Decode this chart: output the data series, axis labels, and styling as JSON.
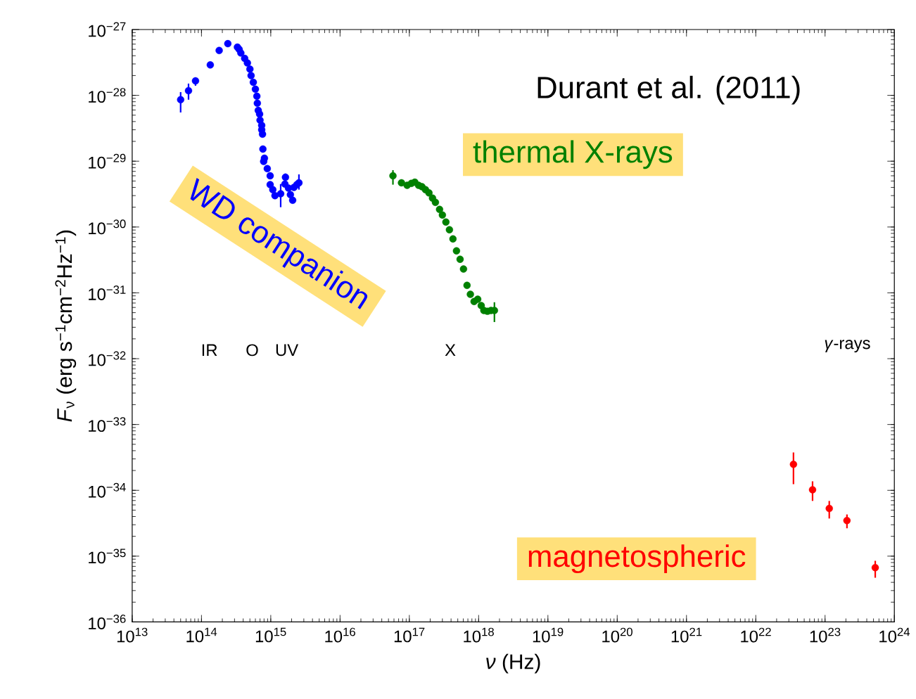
{
  "chart_data": {
    "type": "scatter",
    "log": "xy",
    "xlabel": "*ν* (Hz)",
    "ylabel": "*F*$_{ν}$ (erg s$^{−1}$cm$^{−2}$Hz$^{−1}$)",
    "xlim": [
      10000000000000.0,
      1e+24
    ],
    "ylim": [
      1e-36,
      1e-27
    ],
    "xticks": [
      {
        "value": 10000000000000.0,
        "label": "10$^{13}$"
      },
      {
        "value": 100000000000000.0,
        "label": "10$^{14}$"
      },
      {
        "value": 1000000000000000.0,
        "label": "10$^{15}$"
      },
      {
        "value": 1e+16,
        "label": "10$^{16}$"
      },
      {
        "value": 1e+17,
        "label": "10$^{17}$"
      },
      {
        "value": 1e+18,
        "label": "10$^{18}$"
      },
      {
        "value": 1e+19,
        "label": "10$^{19}$"
      },
      {
        "value": 1e+20,
        "label": "10$^{20}$"
      },
      {
        "value": 1e+21,
        "label": "10$^{21}$"
      },
      {
        "value": 1e+22,
        "label": "10$^{22}$"
      },
      {
        "value": 1e+23,
        "label": "10$^{23}$"
      },
      {
        "value": 1e+24,
        "label": "10$^{24}$"
      }
    ],
    "yticks": [
      {
        "value": 1e-36,
        "label": "10$^{−36}$"
      },
      {
        "value": 1e-35,
        "label": "10$^{−35}$"
      },
      {
        "value": 1e-34,
        "label": "10$^{−34}$"
      },
      {
        "value": 1e-33,
        "label": "10$^{−33}$"
      },
      {
        "value": 1e-32,
        "label": "10$^{−32}$"
      },
      {
        "value": 1e-31,
        "label": "10$^{−31}$"
      },
      {
        "value": 1e-30,
        "label": "10$^{−30}$"
      },
      {
        "value": 1e-29,
        "label": "10$^{−29}$"
      },
      {
        "value": 1e-28,
        "label": "10$^{−28}$"
      },
      {
        "value": 1e-27,
        "label": "10$^{−27}$"
      }
    ],
    "series": [
      {
        "name": "WD companion",
        "color": "#0000ff",
        "x": [
          50000000000000.0,
          65000000000000.0,
          82000000000000.0,
          134000000000000.0,
          180000000000000.0,
          240000000000000.0,
          330000000000000.0,
          350000000000000.0,
          370000000000000.0,
          420000000000000.0,
          460000000000000.0,
          500000000000000.0,
          520000000000000.0,
          560000000000000.0,
          600000000000000.0,
          630000000000000.0,
          640000000000000.0,
          660000000000000.0,
          690000000000000.0,
          700000000000000.0,
          740000000000000.0,
          740000000000000.0,
          760000000000000.0,
          770000000000000.0,
          810000000000000.0,
          790000000000000.0,
          890000000000000.0,
          980000000000000.0,
          980000000000000.0,
          1070000000000000.0,
          1150000000000000.0,
          1390000000000000.0,
          1630000000000000.0,
          1600000000000000.0,
          1800000000000000.0,
          1920000000000000.0,
          2070000000000000.0,
          2160000000000000.0,
          2380000000000000.0,
          2550000000000000.0
        ],
        "values": [
          8.6e-29,
          1.18e-28,
          1.66e-28,
          2.9e-28,
          4.8e-28,
          6.1e-28,
          5.4e-28,
          5e-28,
          4.4e-28,
          3.65e-28,
          3.1e-28,
          2.5e-28,
          2e-28,
          1.58e-28,
          1.24e-28,
          9.7e-29,
          7.6e-29,
          5.9e-29,
          5.2e-29,
          4.2e-29,
          3.5e-29,
          3e-29,
          2.57e-29,
          1.53e-29,
          1.11e-29,
          9.9e-30,
          7.7e-30,
          6e-30,
          4.4e-30,
          3.7e-30,
          3e-30,
          3.2e-30,
          5.7e-30,
          4.5e-30,
          3.9e-30,
          3.1e-30,
          2.55e-30,
          4e-30,
          4.4e-30,
          4.7e-30
        ],
        "errors": [
          [
            5.5e-29,
            1.12e-28
          ],
          [
            8.6e-29,
            1.51e-28
          ],
          [
            1.4e-28,
            1.88e-28
          ],
          null,
          null,
          null,
          null,
          null,
          null,
          null,
          null,
          null,
          null,
          null,
          null,
          null,
          null,
          null,
          null,
          null,
          null,
          null,
          null,
          null,
          null,
          null,
          null,
          null,
          null,
          null,
          null,
          [
            2e-30,
            4.5e-30
          ],
          [
            5.1e-30,
            6.5e-30
          ],
          null,
          null,
          null,
          null,
          null,
          null,
          [
            3.7e-30,
            6.3e-30
          ]
        ]
      },
      {
        "name": "thermal X-rays",
        "color": "#008000",
        "x": [
          5.8e+16,
          7.7e+16,
          9.3e+16,
          1.07e+17,
          1.2e+17,
          1.36e+17,
          1.52e+17,
          1.71e+17,
          1.92e+17,
          2.16e+17,
          2.38e+17,
          2.73e+17,
          3e+17,
          3.37e+17,
          3.79e+17,
          4.26e+17,
          4.79e+17,
          5.4e+17,
          6.05e+17,
          6.8e+17,
          7.6e+17,
          8.6e+17,
          9.7e+17,
          1.09e+18,
          1.19e+18,
          1.34e+18,
          1.51e+18,
          1.69e+18
        ],
        "values": [
          6e-30,
          4.7e-30,
          4.3e-30,
          4.6e-30,
          4.8e-30,
          4.3e-30,
          4.1e-30,
          3.7e-30,
          3.3e-30,
          2.75e-30,
          2.37e-30,
          1.85e-30,
          1.52e-30,
          1.19e-30,
          9.1e-31,
          6.6e-31,
          4.35e-31,
          3.24e-31,
          2.3e-31,
          1.3e-31,
          9.5e-32,
          7.4e-32,
          8e-32,
          6.4e-32,
          5.4e-32,
          5.25e-32,
          5.4e-32,
          5.4e-32
        ],
        "errors": [
          [
            4.4e-30,
            7.3e-30
          ],
          null,
          null,
          null,
          null,
          null,
          null,
          null,
          null,
          null,
          null,
          null,
          null,
          null,
          null,
          null,
          null,
          null,
          null,
          null,
          null,
          null,
          null,
          null,
          null,
          null,
          null,
          [
            3.6e-32,
            7.2e-32
          ]
        ]
      },
      {
        "name": "magnetospheric",
        "color": "#ff0000",
        "x": [
          3.5e+22,
          6.6e+22,
          1.15e+23,
          2.07e+23,
          5.3e+23
        ],
        "values": [
          2.48e-34,
          1.02e-34,
          5.3e-35,
          3.47e-35,
          6.7e-36
        ],
        "errors": [
          [
            1.24e-34,
            3.76e-34
          ],
          [
            6.9e-35,
            1.37e-34
          ],
          [
            3.73e-35,
            6.9e-35
          ],
          [
            2.65e-35,
            4.3e-35
          ],
          [
            4.7e-36,
            8.5e-36
          ]
        ]
      }
    ],
    "annotations": [
      "Durant et al. (2011)",
      "IR",
      "O",
      "UV",
      "X",
      "*γ*-rays"
    ]
  }
}
